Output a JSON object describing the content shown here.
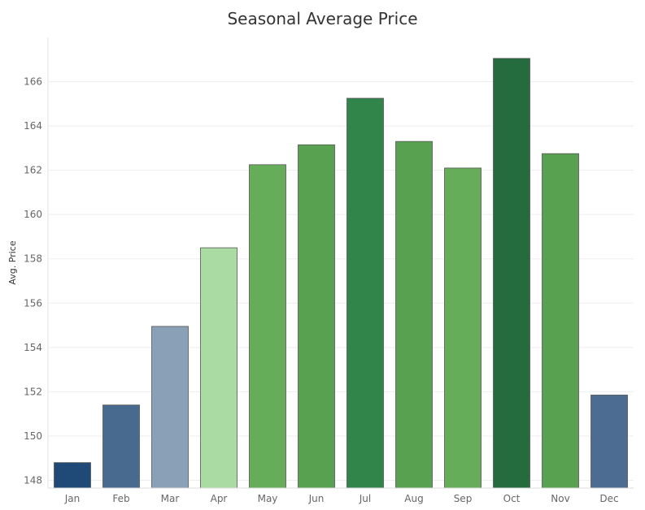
{
  "chart_data": {
    "type": "bar",
    "title": "Seasonal Average Price",
    "xlabel": "",
    "ylabel": "Avg. Price",
    "categories": [
      "Jan",
      "Feb",
      "Mar",
      "Apr",
      "May",
      "Jun",
      "Jul",
      "Aug",
      "Sep",
      "Oct",
      "Nov",
      "Dec"
    ],
    "values": [
      148.8,
      151.4,
      154.95,
      158.5,
      162.25,
      163.15,
      165.25,
      163.3,
      162.1,
      167.05,
      162.75,
      151.85
    ],
    "colors": [
      "#1f4a78",
      "#476a8e",
      "#8aa0b7",
      "#aadba2",
      "#66ad5a",
      "#57a150",
      "#31844a",
      "#57a150",
      "#66ad5a",
      "#246c3e",
      "#57a150",
      "#4c6c91"
    ],
    "ylim": [
      147.65,
      168.0
    ],
    "yticks": [
      148,
      150,
      152,
      154,
      156,
      158,
      160,
      162,
      164,
      166
    ],
    "grid": true
  }
}
